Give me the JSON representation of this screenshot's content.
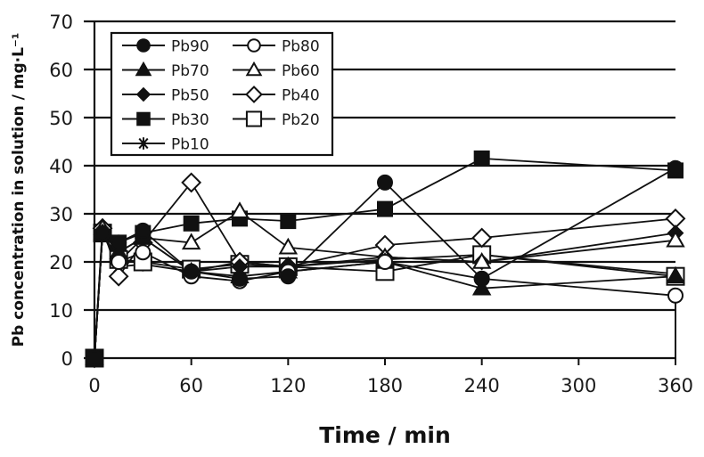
{
  "chart_data": {
    "type": "line",
    "title": "",
    "xlabel": "Time / min",
    "ylabel": "Pb concentration in solution / mg·L⁻¹",
    "xlim": [
      0,
      360
    ],
    "ylim": [
      0,
      70
    ],
    "xticks": [
      0,
      60,
      120,
      180,
      240,
      300,
      360
    ],
    "yticks": [
      0,
      10,
      20,
      30,
      40,
      50,
      60,
      70
    ],
    "xtick_labels": [
      "0",
      "60",
      "120",
      "180",
      "240",
      "300",
      "360"
    ],
    "ytick_labels": [
      "0",
      "10",
      "20",
      "30",
      "40",
      "50",
      "60",
      "70"
    ],
    "grid": "horizontal",
    "legend_position": "top-left",
    "x": [
      0,
      5,
      15,
      30,
      60,
      90,
      120,
      180,
      240,
      360
    ],
    "series": [
      {
        "name": "Pb90",
        "marker": "circle-filled",
        "values": [
          0,
          26,
          24,
          26.5,
          18,
          16.5,
          17,
          36.5,
          16.5,
          39.5
        ]
      },
      {
        "name": "Pb80",
        "marker": "circle-open",
        "values": [
          0,
          26,
          20,
          22,
          17,
          16,
          18,
          20,
          16.5,
          13
        ]
      },
      {
        "name": "Pb70",
        "marker": "triangle-filled",
        "values": [
          0,
          26,
          22,
          25,
          18,
          17,
          18,
          20,
          14.5,
          17
        ]
      },
      {
        "name": "Pb60",
        "marker": "triangle-open",
        "values": [
          0,
          27,
          22,
          25,
          24,
          30.5,
          23,
          21,
          20,
          24.5
        ]
      },
      {
        "name": "Pb50",
        "marker": "diamond-filled",
        "values": [
          0,
          26,
          20,
          25,
          18,
          19,
          19,
          21,
          20,
          26
        ]
      },
      {
        "name": "Pb40",
        "marker": "diamond-open",
        "values": [
          0,
          27,
          17,
          24,
          36.5,
          20,
          19,
          23.5,
          25,
          29
        ]
      },
      {
        "name": "Pb30",
        "marker": "square-filled",
        "values": [
          0,
          26,
          24,
          26,
          28,
          29,
          28.5,
          31,
          41.5,
          39
        ]
      },
      {
        "name": "Pb20",
        "marker": "square-open",
        "values": [
          0,
          26,
          20.5,
          20,
          18.5,
          19.5,
          19,
          18,
          21.5,
          17
        ]
      },
      {
        "name": "Pb10",
        "marker": "star",
        "values": [
          0,
          26,
          19,
          19.5,
          18,
          20,
          19,
          20.5,
          21.5,
          17.5
        ]
      }
    ],
    "legend": [
      [
        "Pb90",
        "Pb80"
      ],
      [
        "Pb70",
        "Pb60"
      ],
      [
        "Pb50",
        "Pb40"
      ],
      [
        "Pb30",
        "Pb20"
      ],
      [
        "Pb10"
      ]
    ]
  },
  "colors": {
    "line": "#111111",
    "grid": "#111111",
    "background": "#ffffff"
  }
}
